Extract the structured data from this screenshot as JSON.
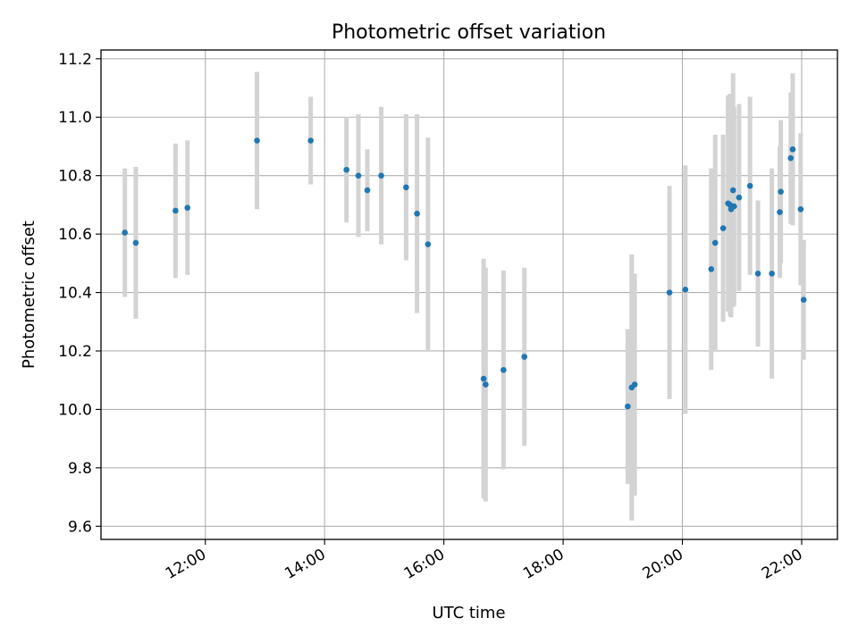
{
  "chart_data": {
    "type": "scatter",
    "title": "Photometric offset variation",
    "xlabel": "UTC time",
    "ylabel": "Photometric offset",
    "grid": true,
    "xlim": [
      10.25,
      22.6
    ],
    "ylim": [
      9.555,
      11.23
    ],
    "x_ticks": [
      {
        "label": "12:00",
        "value": 12
      },
      {
        "label": "14:00",
        "value": 14
      },
      {
        "label": "16:00",
        "value": 16
      },
      {
        "label": "18:00",
        "value": 18
      },
      {
        "label": "20:00",
        "value": 20
      },
      {
        "label": "22:00",
        "value": 22
      }
    ],
    "y_ticks": [
      {
        "label": "9.6",
        "value": 9.6
      },
      {
        "label": "9.8",
        "value": 9.8
      },
      {
        "label": "10.0",
        "value": 10.0
      },
      {
        "label": "10.2",
        "value": 10.2
      },
      {
        "label": "10.4",
        "value": 10.4
      },
      {
        "label": "10.6",
        "value": 10.6
      },
      {
        "label": "10.8",
        "value": 10.8
      },
      {
        "label": "11.0",
        "value": 11.0
      },
      {
        "label": "11.2",
        "value": 11.2
      }
    ],
    "colors": {
      "point": "#1f77b4",
      "errorbar": "#d3d3d3",
      "grid": "#b0b0b0"
    },
    "points": [
      {
        "x": "10:39",
        "y": 10.605,
        "err": 0.22
      },
      {
        "x": "10:50",
        "y": 10.57,
        "err": 0.26
      },
      {
        "x": "11:30",
        "y": 10.68,
        "err": 0.23
      },
      {
        "x": "11:42",
        "y": 10.69,
        "err": 0.23
      },
      {
        "x": "12:52",
        "y": 10.92,
        "err": 0.235
      },
      {
        "x": "13:46",
        "y": 10.92,
        "err": 0.15
      },
      {
        "x": "14:22",
        "y": 10.82,
        "err": 0.18
      },
      {
        "x": "14:34",
        "y": 10.8,
        "err": 0.21
      },
      {
        "x": "14:43",
        "y": 10.75,
        "err": 0.14
      },
      {
        "x": "14:57",
        "y": 10.8,
        "err": 0.235
      },
      {
        "x": "15:22",
        "y": 10.76,
        "err": 0.25
      },
      {
        "x": "15:33",
        "y": 10.67,
        "err": 0.34
      },
      {
        "x": "15:44",
        "y": 10.565,
        "err": 0.365
      },
      {
        "x": "16:40",
        "y": 10.105,
        "err": 0.41
      },
      {
        "x": "16:42",
        "y": 10.085,
        "err": 0.4
      },
      {
        "x": "17:00",
        "y": 10.135,
        "err": 0.34
      },
      {
        "x": "17:21",
        "y": 10.18,
        "err": 0.305
      },
      {
        "x": "19:05",
        "y": 10.01,
        "err": 0.265
      },
      {
        "x": "19:09",
        "y": 10.075,
        "err": 0.455
      },
      {
        "x": "19:12",
        "y": 10.085,
        "err": 0.38
      },
      {
        "x": "19:47",
        "y": 10.4,
        "err": 0.365
      },
      {
        "x": "20:03",
        "y": 10.41,
        "err": 0.425
      },
      {
        "x": "20:29",
        "y": 10.48,
        "err": 0.345
      },
      {
        "x": "20:33",
        "y": 10.57,
        "err": 0.37
      },
      {
        "x": "20:41",
        "y": 10.62,
        "err": 0.32
      },
      {
        "x": "20:46",
        "y": 10.705,
        "err": 0.37
      },
      {
        "x": "20:48",
        "y": 10.7,
        "err": 0.38
      },
      {
        "x": "20:49",
        "y": 10.685,
        "err": 0.37
      },
      {
        "x": "20:51",
        "y": 10.75,
        "err": 0.4
      },
      {
        "x": "20:52",
        "y": 10.695,
        "err": 0.34
      },
      {
        "x": "20:57",
        "y": 10.725,
        "err": 0.32
      },
      {
        "x": "21:08",
        "y": 10.765,
        "err": 0.305
      },
      {
        "x": "21:16",
        "y": 10.465,
        "err": 0.25
      },
      {
        "x": "21:30",
        "y": 10.465,
        "err": 0.36
      },
      {
        "x": "21:38",
        "y": 10.675,
        "err": 0.225
      },
      {
        "x": "21:39",
        "y": 10.745,
        "err": 0.245
      },
      {
        "x": "21:49",
        "y": 10.86,
        "err": 0.225
      },
      {
        "x": "21:51",
        "y": 10.89,
        "err": 0.26
      },
      {
        "x": "21:59",
        "y": 10.685,
        "err": 0.26
      },
      {
        "x": "22:02",
        "y": 10.375,
        "err": 0.205
      }
    ]
  }
}
